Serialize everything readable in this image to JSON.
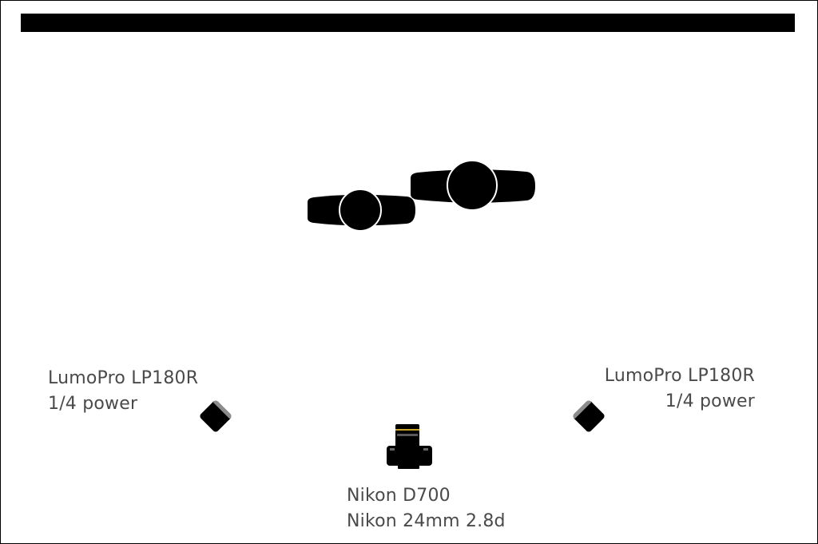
{
  "colors": {
    "ink": "#000000",
    "label_text": "#4a4a4a",
    "background": "#ffffff",
    "lens_ring": "#c9a227"
  },
  "icons": {
    "subject": "person-top-view-icon",
    "flash": "flash-unit-icon",
    "camera": "camera-top-view-icon"
  },
  "lights": [
    {
      "model": "LumoPro LP180R",
      "power": "1/4 power"
    },
    {
      "model": "LumoPro LP180R",
      "power": "1/4 power"
    }
  ],
  "camera": {
    "body": "Nikon D700",
    "lens": "Nikon 24mm 2.8d"
  }
}
